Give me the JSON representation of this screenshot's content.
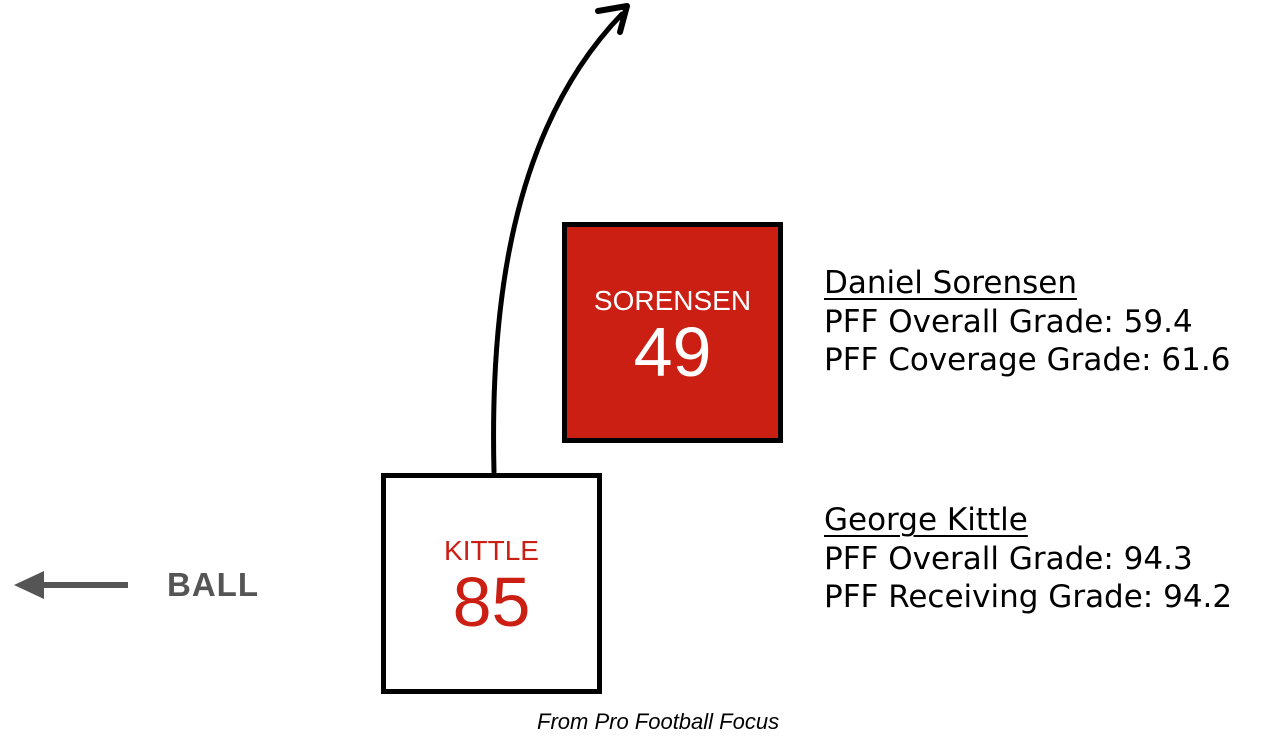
{
  "defender": {
    "box_name": "SORENSEN",
    "number": "49",
    "full_name": "Daniel Sorensen",
    "overall_grade_line": "PFF Overall Grade: 59.4",
    "coverage_grade_line": "PFF Coverage Grade: 61.6"
  },
  "receiver": {
    "box_name": "KITTLE",
    "number": "85",
    "full_name": "George Kittle",
    "overall_grade_line": "PFF Overall Grade: 94.3",
    "receiving_grade_line": "PFF Receiving Grade: 94.2"
  },
  "ball": {
    "label": "BALL"
  },
  "source": {
    "text": "From Pro Football Focus"
  },
  "colors": {
    "accent_red": "#cc1f13",
    "ball_gray": "#555555",
    "line_black": "#000000"
  }
}
